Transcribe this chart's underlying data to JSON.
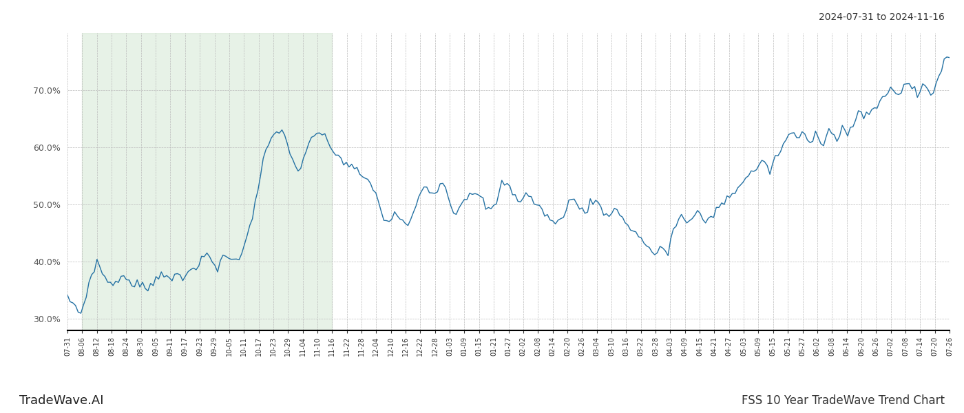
{
  "title_top_right": "2024-07-31 to 2024-11-16",
  "title_bottom_left": "TradeWave.AI",
  "title_bottom_right": "FSS 10 Year TradeWave Trend Chart",
  "line_color": "#2471a3",
  "shade_color": "#d5e8d4",
  "shade_alpha": 0.55,
  "ylim": [
    28.0,
    80.0
  ],
  "yticks": [
    30.0,
    40.0,
    50.0,
    60.0,
    70.0
  ],
  "background_color": "#ffffff",
  "grid_color": "#bbbbbb",
  "x_labels": [
    "07-31",
    "08-06",
    "08-12",
    "08-18",
    "08-24",
    "08-30",
    "09-05",
    "09-11",
    "09-17",
    "09-23",
    "09-29",
    "10-05",
    "10-11",
    "10-17",
    "10-23",
    "10-29",
    "11-04",
    "11-10",
    "11-16",
    "11-22",
    "11-28",
    "12-04",
    "12-10",
    "12-16",
    "12-22",
    "12-28",
    "01-03",
    "01-09",
    "01-15",
    "01-21",
    "01-27",
    "02-02",
    "02-08",
    "02-14",
    "02-20",
    "02-26",
    "03-04",
    "03-10",
    "03-16",
    "03-22",
    "03-28",
    "04-03",
    "04-09",
    "04-15",
    "04-21",
    "04-27",
    "05-03",
    "05-09",
    "05-15",
    "05-21",
    "05-27",
    "06-02",
    "06-08",
    "06-14",
    "06-20",
    "06-26",
    "07-02",
    "07-08",
    "07-14",
    "07-20",
    "07-26"
  ],
  "shade_start_label": "08-06",
  "shade_end_label": "11-16",
  "values": [
    33.5,
    33.2,
    32.8,
    32.2,
    31.5,
    31.0,
    32.5,
    34.5,
    36.0,
    37.5,
    38.5,
    40.5,
    39.0,
    38.0,
    37.5,
    37.0,
    36.2,
    35.8,
    36.5,
    37.0,
    36.8,
    37.5,
    37.0,
    36.0,
    35.8,
    36.2,
    37.0,
    36.5,
    36.0,
    35.5,
    35.2,
    35.8,
    36.5,
    37.2,
    37.8,
    38.5,
    37.8,
    37.0,
    36.5,
    36.8,
    37.5,
    38.0,
    37.5,
    37.0,
    38.2,
    39.0,
    38.5,
    38.0,
    38.5,
    39.5,
    40.2,
    40.8,
    41.5,
    40.8,
    40.0,
    39.5,
    38.8,
    40.0,
    41.2,
    40.5,
    40.8,
    41.2,
    40.5,
    39.8,
    40.5,
    41.8,
    43.5,
    45.0,
    46.5,
    48.0,
    50.0,
    52.5,
    55.0,
    57.5,
    59.0,
    60.5,
    61.5,
    62.0,
    62.8,
    63.2,
    62.8,
    61.8,
    60.5,
    59.2,
    58.0,
    57.0,
    56.0,
    55.8,
    57.5,
    59.0,
    60.5,
    61.5,
    62.0,
    62.5,
    62.8,
    62.2,
    61.5,
    60.8,
    60.2,
    59.5,
    59.0,
    58.5,
    58.0,
    57.5,
    57.2,
    56.8,
    56.5,
    56.2,
    55.8,
    55.5,
    55.0,
    54.5,
    54.0,
    53.5,
    53.0,
    52.0,
    50.5,
    49.0,
    47.5,
    46.5,
    47.2,
    47.8,
    48.5,
    48.0,
    47.5,
    47.0,
    46.5,
    46.2,
    47.0,
    48.5,
    50.0,
    51.5,
    52.5,
    53.0,
    53.5,
    52.8,
    52.0,
    52.5,
    53.0,
    53.5,
    54.0,
    52.8,
    51.5,
    50.2,
    49.0,
    48.5,
    49.5,
    50.5,
    51.0,
    51.5,
    52.0,
    52.5,
    52.0,
    51.5,
    51.0,
    50.5,
    49.8,
    49.2,
    48.8,
    49.5,
    50.5,
    52.0,
    53.5,
    54.0,
    53.5,
    52.8,
    52.0,
    51.5,
    51.0,
    50.8,
    51.5,
    52.0,
    51.5,
    51.0,
    50.5,
    50.0,
    49.5,
    49.0,
    48.5,
    48.0,
    47.5,
    47.0,
    46.5,
    46.8,
    47.5,
    48.5,
    49.5,
    50.5,
    51.0,
    50.5,
    50.0,
    49.5,
    49.0,
    48.8,
    49.5,
    50.2,
    50.8,
    50.5,
    50.0,
    49.5,
    48.8,
    48.0,
    48.5,
    49.0,
    49.5,
    48.8,
    48.0,
    47.5,
    47.0,
    46.5,
    46.0,
    45.5,
    45.0,
    44.5,
    44.0,
    43.5,
    43.0,
    42.5,
    41.8,
    41.0,
    41.5,
    42.0,
    42.5,
    42.0,
    41.5,
    44.0,
    45.5,
    46.5,
    47.5,
    48.0,
    47.5,
    47.0,
    46.8,
    47.5,
    48.0,
    48.5,
    48.0,
    47.5,
    47.0,
    47.5,
    48.0,
    48.5,
    49.0,
    49.5,
    50.0,
    50.5,
    51.0,
    51.5,
    52.0,
    52.5,
    53.0,
    53.5,
    54.0,
    54.5,
    55.0,
    55.5,
    56.0,
    56.5,
    57.0,
    57.5,
    57.0,
    56.5,
    56.0,
    57.0,
    58.0,
    58.5,
    59.5,
    60.5,
    61.5,
    62.0,
    62.5,
    62.0,
    61.5,
    62.0,
    62.5,
    62.0,
    61.5,
    61.0,
    62.0,
    62.5,
    62.0,
    61.5,
    61.0,
    62.0,
    63.0,
    62.5,
    62.0,
    61.5,
    62.5,
    63.5,
    62.8,
    62.0,
    63.0,
    64.0,
    65.0,
    66.0,
    65.5,
    65.0,
    65.5,
    66.0,
    66.5,
    67.0,
    67.5,
    68.0,
    68.5,
    69.0,
    69.5,
    70.0,
    70.5,
    70.0,
    69.5,
    70.0,
    70.5,
    71.0,
    71.5,
    70.5,
    69.5,
    69.0,
    70.0,
    71.0,
    70.5,
    70.0,
    69.5,
    70.0,
    71.0,
    72.5,
    74.0,
    75.0,
    75.5,
    75.8
  ]
}
